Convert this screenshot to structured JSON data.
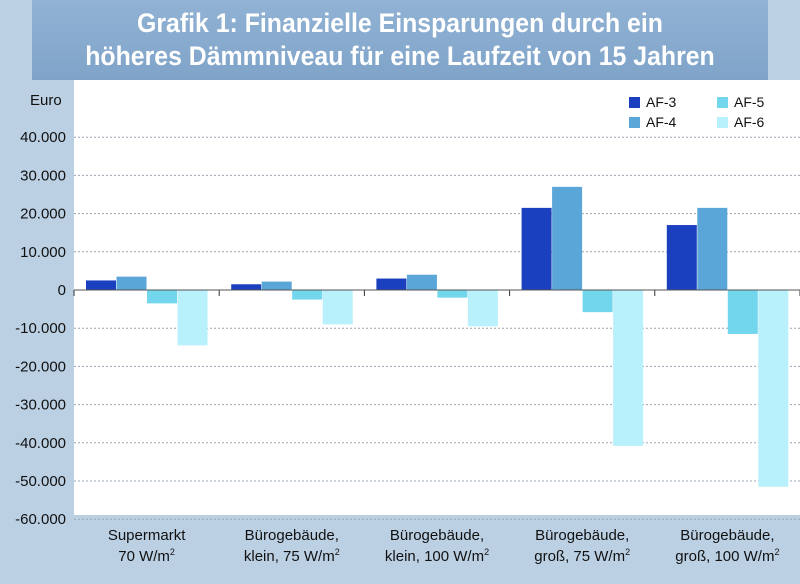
{
  "header": {
    "title_line1": "Grafik 1: Finanzielle Einsparungen durch ein",
    "title_line2": "höheres Dämmniveau für eine Laufzeit von 15 Jahren"
  },
  "colors": {
    "AF-3": "#1a3fbf",
    "AF-4": "#5aa6d8",
    "AF-5": "#72d6ec",
    "AF-6": "#b8f0fb",
    "background": "#bcd0e4",
    "header": "#86a8cd"
  },
  "chart_data": {
    "type": "bar",
    "title": "Grafik 1: Finanzielle Einsparungen durch ein höheres Dämmniveau für eine Laufzeit von 15 Jahren",
    "ylabel": "Euro",
    "ylim": [
      -60000,
      50000
    ],
    "yticks": [
      40000,
      30000,
      20000,
      10000,
      0,
      -10000,
      -20000,
      -30000,
      -40000,
      -50000,
      -60000
    ],
    "ytick_labels": [
      "40.000",
      "30.000",
      "20.000",
      "10.000",
      "0",
      "-10.000",
      "-20.000",
      "-30.000",
      "-40.000",
      "-50.000",
      "-60.000"
    ],
    "grid": true,
    "legend_position": "top-right",
    "categories": [
      [
        "Supermarkt",
        "70 W/m²"
      ],
      [
        "Bürogebäude,",
        "klein, 75 W/m²"
      ],
      [
        "Bürogebäude,",
        "klein, 100 W/m²"
      ],
      [
        "Bürogebäude,",
        "groß, 75 W/m²"
      ],
      [
        "Bürogebäude,",
        "groß, 100 W/m²"
      ]
    ],
    "series": [
      {
        "name": "AF-3",
        "values": [
          2500,
          1500,
          3000,
          21500,
          17000
        ]
      },
      {
        "name": "AF-4",
        "values": [
          3500,
          2200,
          4000,
          27000,
          21500
        ]
      },
      {
        "name": "AF-5",
        "values": [
          -3500,
          -2500,
          -2000,
          -5800,
          -11500
        ]
      },
      {
        "name": "AF-6",
        "values": [
          -14500,
          -9000,
          -9500,
          -40800,
          -51500
        ]
      }
    ]
  }
}
